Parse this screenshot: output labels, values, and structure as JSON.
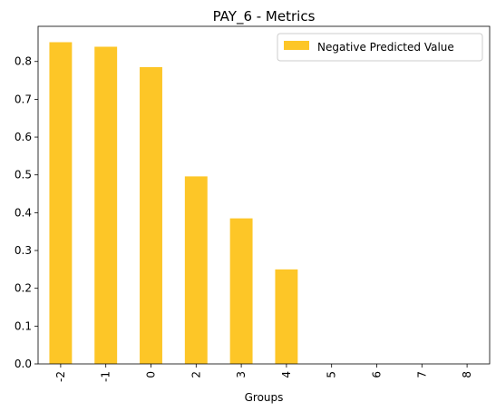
{
  "chart_data": {
    "type": "bar",
    "title": "PAY_6 - Metrics",
    "xlabel": "Groups",
    "ylabel": "",
    "categories": [
      "-2",
      "-1",
      "0",
      "2",
      "3",
      "4",
      "5",
      "6",
      "7",
      "8"
    ],
    "series": [
      {
        "name": "Negative Predicted Value",
        "color": "#fdc627",
        "values": [
          0.851,
          0.839,
          0.785,
          0.496,
          0.385,
          0.25,
          0,
          0,
          0,
          0
        ]
      }
    ],
    "yticks": [
      "0.0",
      "0.1",
      "0.2",
      "0.3",
      "0.4",
      "0.5",
      "0.6",
      "0.7",
      "0.8"
    ],
    "ylim": [
      0,
      0.893
    ],
    "grid": false,
    "legend_position": "top-right"
  }
}
